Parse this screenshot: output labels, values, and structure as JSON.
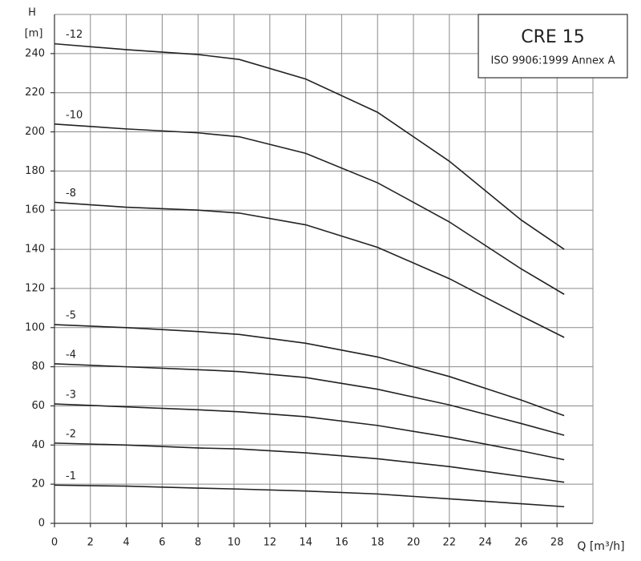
{
  "chart_data": {
    "type": "line",
    "title": "CRE 15",
    "subtitle": "ISO 9906:1999 Annex A",
    "y_label_top": "H",
    "y_label": "[m]",
    "x_label": "Q [m³/h]",
    "xlim": [
      0,
      30
    ],
    "xticks": [
      0,
      2,
      4,
      6,
      8,
      10,
      12,
      14,
      16,
      18,
      20,
      22,
      24,
      26,
      28
    ],
    "ylim": [
      0,
      260
    ],
    "yticks": [
      0,
      20,
      40,
      60,
      80,
      100,
      120,
      140,
      160,
      180,
      200,
      220,
      240
    ],
    "grid": true,
    "x": [
      0,
      4,
      8,
      10.3,
      14,
      18,
      22,
      26,
      28.4
    ],
    "series": [
      {
        "name": "-12",
        "color": "#222222",
        "values": [
          245,
          242,
          239.5,
          237,
          227,
          210,
          185,
          155,
          140
        ]
      },
      {
        "name": "-10",
        "color": "#222222",
        "values": [
          204,
          201.5,
          199.5,
          197.5,
          189,
          174,
          154,
          130,
          117
        ]
      },
      {
        "name": "-8",
        "color": "#222222",
        "values": [
          164,
          161.5,
          160,
          158.5,
          152.5,
          141,
          125,
          106,
          95
        ]
      },
      {
        "name": "-5",
        "color": "#222222",
        "values": [
          101.5,
          100,
          98,
          96.5,
          92,
          85,
          75,
          63,
          55
        ]
      },
      {
        "name": "-4",
        "color": "#222222",
        "values": [
          81.5,
          80,
          78.5,
          77.5,
          74.5,
          68.5,
          60.5,
          51,
          45
        ]
      },
      {
        "name": "-3",
        "color": "#222222",
        "values": [
          61,
          59.5,
          58,
          57,
          54.5,
          50,
          44,
          37,
          32.5
        ]
      },
      {
        "name": "-2",
        "color": "#222222",
        "values": [
          41,
          40,
          38.5,
          38,
          36,
          33,
          29,
          24,
          21
        ]
      },
      {
        "name": "-1",
        "color": "#222222",
        "values": [
          19.5,
          19,
          18,
          17.5,
          16.5,
          15,
          12.5,
          10,
          8.5
        ]
      }
    ]
  }
}
